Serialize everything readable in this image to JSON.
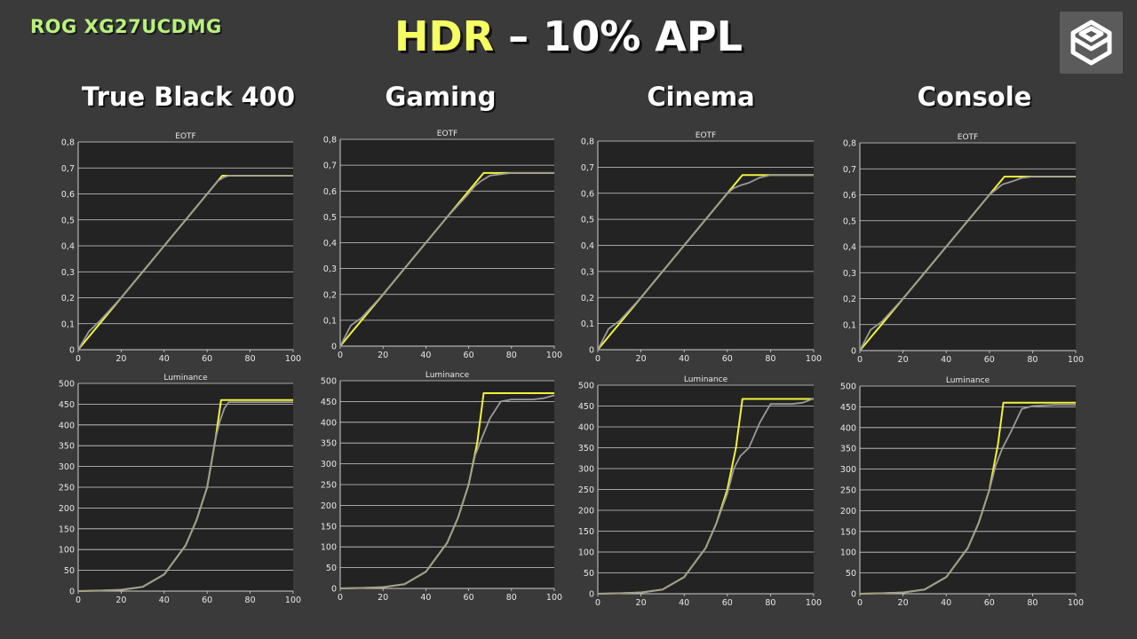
{
  "header": {
    "model": "ROG XG27UCDMG",
    "title_highlight": "HDR",
    "title_rest": " – 10% APL",
    "logo": "hexagon-logo-icon"
  },
  "colors": {
    "background": "#3a3a3a",
    "plot_bg": "#232323",
    "target": "#f2f23a",
    "measured": "#9a9a9a",
    "grid": "#d0d0d0"
  },
  "columns": [
    "True Black 400",
    "Gaming",
    "Cinema",
    "Console"
  ],
  "chart_data": [
    {
      "type": "line",
      "panel": "EOTF",
      "mode": "True Black 400",
      "title": "EOTF",
      "xlim": [
        0,
        100
      ],
      "ylim": [
        0,
        0.8
      ],
      "xticks": [
        "0",
        "20",
        "40",
        "60",
        "80",
        "100"
      ],
      "yticks": [
        "0",
        "0,1",
        "0,2",
        "0,3",
        "0,4",
        "0,5",
        "0,6",
        "0,7",
        "0,8"
      ],
      "series": [
        {
          "role": "target",
          "x": [
            0,
            5,
            10,
            20,
            30,
            40,
            50,
            60,
            67,
            70,
            80,
            90,
            100
          ],
          "y": [
            0,
            0.05,
            0.1,
            0.2,
            0.3,
            0.4,
            0.5,
            0.6,
            0.67,
            0.67,
            0.67,
            0.67,
            0.67
          ]
        },
        {
          "role": "measured",
          "x": [
            0,
            5,
            10,
            20,
            30,
            40,
            50,
            60,
            65,
            68,
            70,
            80,
            90,
            100
          ],
          "y": [
            0,
            0.07,
            0.11,
            0.2,
            0.3,
            0.4,
            0.5,
            0.6,
            0.65,
            0.665,
            0.67,
            0.67,
            0.67,
            0.67
          ]
        }
      ]
    },
    {
      "type": "line",
      "panel": "Luminance",
      "mode": "True Black 400",
      "title": "Luminance",
      "xlim": [
        0,
        100
      ],
      "ylim": [
        0,
        500
      ],
      "xticks": [
        "0",
        "20",
        "40",
        "60",
        "80",
        "100"
      ],
      "yticks": [
        "0",
        "50",
        "100",
        "150",
        "200",
        "250",
        "300",
        "350",
        "400",
        "450",
        "500"
      ],
      "series": [
        {
          "role": "target",
          "x": [
            0,
            10,
            20,
            30,
            40,
            50,
            55,
            60,
            64,
            66.5,
            70,
            80,
            90,
            100
          ],
          "y": [
            0,
            1,
            3,
            10,
            40,
            110,
            170,
            250,
            370,
            460,
            460,
            460,
            460,
            460
          ]
        },
        {
          "role": "measured",
          "x": [
            0,
            10,
            20,
            30,
            40,
            50,
            55,
            60,
            64,
            66,
            68,
            70,
            80,
            90,
            100
          ],
          "y": [
            0,
            1,
            3,
            10,
            40,
            110,
            170,
            250,
            370,
            410,
            440,
            455,
            455,
            455,
            455
          ]
        }
      ]
    },
    {
      "type": "line",
      "panel": "EOTF",
      "mode": "Gaming",
      "title": "EOTF",
      "xlim": [
        0,
        100
      ],
      "ylim": [
        0,
        0.8
      ],
      "xticks": [
        "0",
        "20",
        "40",
        "60",
        "80",
        "100"
      ],
      "yticks": [
        "0",
        "0,1",
        "0,2",
        "0,3",
        "0,4",
        "0,5",
        "0,6",
        "0,7",
        "0,8"
      ],
      "series": [
        {
          "role": "target",
          "x": [
            0,
            5,
            10,
            20,
            30,
            40,
            50,
            60,
            67,
            70,
            80,
            90,
            100
          ],
          "y": [
            0,
            0.05,
            0.1,
            0.2,
            0.3,
            0.4,
            0.5,
            0.6,
            0.67,
            0.67,
            0.67,
            0.67,
            0.67
          ]
        },
        {
          "role": "measured",
          "x": [
            0,
            5,
            10,
            20,
            30,
            40,
            50,
            60,
            63,
            66,
            70,
            75,
            80,
            90,
            100
          ],
          "y": [
            0,
            0.08,
            0.11,
            0.2,
            0.3,
            0.4,
            0.5,
            0.59,
            0.62,
            0.64,
            0.66,
            0.665,
            0.67,
            0.67,
            0.67
          ]
        }
      ]
    },
    {
      "type": "line",
      "panel": "Luminance",
      "mode": "Gaming",
      "title": "Luminance",
      "xlim": [
        0,
        100
      ],
      "ylim": [
        0,
        500
      ],
      "xticks": [
        "0",
        "20",
        "40",
        "60",
        "80",
        "100"
      ],
      "yticks": [
        "0",
        "50",
        "100",
        "150",
        "200",
        "250",
        "300",
        "350",
        "400",
        "450",
        "500"
      ],
      "series": [
        {
          "role": "target",
          "x": [
            0,
            10,
            20,
            30,
            40,
            50,
            55,
            60,
            64,
            67,
            70,
            80,
            90,
            100
          ],
          "y": [
            0,
            1,
            3,
            10,
            40,
            110,
            170,
            250,
            350,
            470,
            470,
            470,
            470,
            470
          ]
        },
        {
          "role": "measured",
          "x": [
            0,
            10,
            20,
            30,
            40,
            50,
            55,
            60,
            63,
            66,
            70,
            75,
            80,
            90,
            95,
            100
          ],
          "y": [
            0,
            1,
            3,
            10,
            40,
            110,
            170,
            250,
            320,
            360,
            410,
            450,
            455,
            455,
            458,
            465
          ]
        }
      ]
    },
    {
      "type": "line",
      "panel": "EOTF",
      "mode": "Cinema",
      "title": "EOTF",
      "xlim": [
        0,
        100
      ],
      "ylim": [
        0,
        0.8
      ],
      "xticks": [
        "0",
        "20",
        "40",
        "60",
        "80",
        "100"
      ],
      "yticks": [
        "0",
        "0,1",
        "0,2",
        "0,3",
        "0,4",
        "0,5",
        "0,6",
        "0,7",
        "0,8"
      ],
      "series": [
        {
          "role": "target",
          "x": [
            0,
            5,
            10,
            20,
            30,
            40,
            50,
            60,
            67,
            70,
            80,
            90,
            100
          ],
          "y": [
            0,
            0.05,
            0.1,
            0.2,
            0.3,
            0.4,
            0.5,
            0.6,
            0.67,
            0.67,
            0.67,
            0.67,
            0.67
          ]
        },
        {
          "role": "measured",
          "x": [
            0,
            5,
            10,
            20,
            30,
            40,
            50,
            60,
            63,
            66,
            70,
            75,
            80,
            90,
            100
          ],
          "y": [
            0,
            0.08,
            0.11,
            0.2,
            0.3,
            0.4,
            0.5,
            0.6,
            0.62,
            0.63,
            0.64,
            0.66,
            0.67,
            0.67,
            0.67
          ]
        }
      ]
    },
    {
      "type": "line",
      "panel": "Luminance",
      "mode": "Cinema",
      "title": "Luminance",
      "xlim": [
        0,
        100
      ],
      "ylim": [
        0,
        500
      ],
      "xticks": [
        "0",
        "20",
        "40",
        "60",
        "80",
        "100"
      ],
      "yticks": [
        "0",
        "50",
        "100",
        "150",
        "200",
        "250",
        "300",
        "350",
        "400",
        "450",
        "500"
      ],
      "series": [
        {
          "role": "target",
          "x": [
            0,
            10,
            20,
            30,
            40,
            50,
            55,
            60,
            64,
            67,
            70,
            80,
            90,
            100
          ],
          "y": [
            0,
            1,
            3,
            10,
            40,
            110,
            170,
            250,
            350,
            467,
            467,
            467,
            467,
            467
          ]
        },
        {
          "role": "measured",
          "x": [
            0,
            10,
            20,
            30,
            40,
            50,
            55,
            60,
            63,
            66,
            70,
            75,
            80,
            90,
            95,
            100
          ],
          "y": [
            0,
            1,
            3,
            10,
            40,
            110,
            170,
            240,
            300,
            330,
            350,
            410,
            455,
            455,
            458,
            468
          ]
        }
      ]
    },
    {
      "type": "line",
      "panel": "EOTF",
      "mode": "Console",
      "title": "EOTF",
      "xlim": [
        0,
        100
      ],
      "ylim": [
        0,
        0.8
      ],
      "xticks": [
        "0",
        "20",
        "40",
        "60",
        "80",
        "100"
      ],
      "yticks": [
        "0",
        "0,1",
        "0,2",
        "0,3",
        "0,4",
        "0,5",
        "0,6",
        "0,7",
        "0,8"
      ],
      "series": [
        {
          "role": "target",
          "x": [
            0,
            5,
            10,
            20,
            30,
            40,
            50,
            60,
            67,
            70,
            80,
            90,
            100
          ],
          "y": [
            0,
            0.05,
            0.1,
            0.2,
            0.3,
            0.4,
            0.5,
            0.6,
            0.67,
            0.67,
            0.67,
            0.67,
            0.67
          ]
        },
        {
          "role": "measured",
          "x": [
            0,
            5,
            10,
            20,
            30,
            40,
            50,
            60,
            63,
            66,
            70,
            75,
            80,
            90,
            100
          ],
          "y": [
            0,
            0.08,
            0.11,
            0.2,
            0.3,
            0.4,
            0.5,
            0.6,
            0.62,
            0.64,
            0.65,
            0.665,
            0.67,
            0.67,
            0.67
          ]
        }
      ]
    },
    {
      "type": "line",
      "panel": "Luminance",
      "mode": "Console",
      "title": "Luminance",
      "xlim": [
        0,
        100
      ],
      "ylim": [
        0,
        500
      ],
      "xticks": [
        "0",
        "20",
        "40",
        "60",
        "80",
        "100"
      ],
      "yticks": [
        "0",
        "50",
        "100",
        "150",
        "200",
        "250",
        "300",
        "350",
        "400",
        "450",
        "500"
      ],
      "series": [
        {
          "role": "target",
          "x": [
            0,
            10,
            20,
            30,
            40,
            50,
            55,
            60,
            64,
            66.5,
            70,
            80,
            90,
            100
          ],
          "y": [
            0,
            1,
            3,
            10,
            40,
            110,
            170,
            250,
            360,
            460,
            460,
            460,
            460,
            460
          ]
        },
        {
          "role": "measured",
          "x": [
            0,
            10,
            20,
            30,
            40,
            50,
            55,
            60,
            63,
            66,
            70,
            75,
            80,
            90,
            100
          ],
          "y": [
            0,
            1,
            3,
            10,
            40,
            110,
            170,
            250,
            310,
            350,
            390,
            445,
            452,
            455,
            455
          ]
        }
      ]
    }
  ]
}
